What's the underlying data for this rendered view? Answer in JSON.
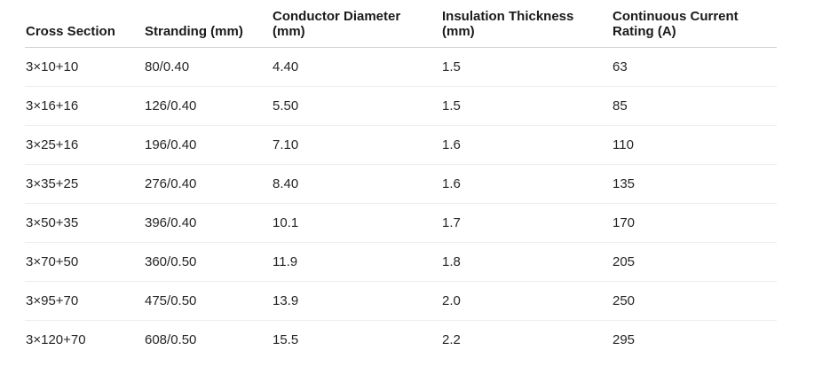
{
  "table": {
    "columns": [
      "Cross Section",
      "Stranding (mm)",
      "Conductor Diameter (mm)",
      "Insulation Thickness (mm)",
      "Continuous Current Rating (A)"
    ],
    "rows": [
      [
        "3×10+10",
        "80/0.40",
        "4.40",
        "1.5",
        "63"
      ],
      [
        "3×16+16",
        "126/0.40",
        "5.50",
        "1.5",
        "85"
      ],
      [
        "3×25+16",
        "196/0.40",
        "7.10",
        "1.6",
        "110"
      ],
      [
        "3×35+25",
        "276/0.40",
        "8.40",
        "1.6",
        "135"
      ],
      [
        "3×50+35",
        "396/0.40",
        "10.1",
        "1.7",
        "170"
      ],
      [
        "3×70+50",
        "360/0.50",
        "11.9",
        "1.8",
        "205"
      ],
      [
        "3×95+70",
        "475/0.50",
        "13.9",
        "2.0",
        "250"
      ],
      [
        "3×120+70",
        "608/0.50",
        "15.5",
        "2.2",
        "295"
      ]
    ]
  }
}
